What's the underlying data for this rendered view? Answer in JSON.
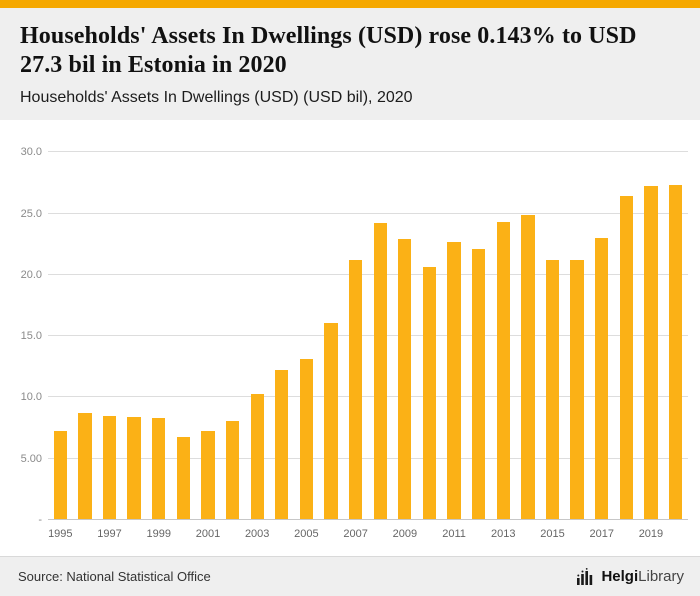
{
  "colors": {
    "strip": "#f5a800",
    "bar": "#fbb116",
    "header_bg": "#efefef",
    "footer_bg": "#efefef",
    "gridline": "#dddddd"
  },
  "header": {
    "title": "Households' Assets In Dwellings (USD) rose 0.143% to USD 27.3 bil in Estonia in 2020",
    "subtitle": "Households' Assets In Dwellings (USD) (USD bil), 2020"
  },
  "chart_data": {
    "type": "bar",
    "title": "Households' Assets In Dwellings (USD) rose 0.143% to USD 27.3 bil in Estonia in 2020",
    "subtitle": "Households' Assets In Dwellings (USD) (USD bil), 2020",
    "xlabel": "",
    "ylabel": "",
    "ylim": [
      0,
      30
    ],
    "ymax_render": 31.2,
    "grid": true,
    "legend": false,
    "bar_color": "#fbb116",
    "categories": [
      "1995",
      "1996",
      "1997",
      "1998",
      "1999",
      "2000",
      "2001",
      "2002",
      "2003",
      "2004",
      "2005",
      "2006",
      "2007",
      "2008",
      "2009",
      "2010",
      "2011",
      "2012",
      "2013",
      "2014",
      "2015",
      "2016",
      "2017",
      "2018",
      "2019",
      "2020"
    ],
    "values": [
      7.3,
      8.7,
      8.5,
      8.4,
      8.3,
      6.8,
      7.3,
      8.1,
      10.3,
      12.2,
      13.1,
      16.1,
      21.2,
      24.2,
      22.9,
      20.6,
      22.7,
      22.1,
      24.3,
      24.9,
      21.2,
      21.2,
      23.0,
      26.4,
      27.26,
      27.3
    ],
    "x_tick_every": 2,
    "yticks": [
      {
        "value": 0,
        "label": "-"
      },
      {
        "value": 5,
        "label": "5.00"
      },
      {
        "value": 10,
        "label": "10.0"
      },
      {
        "value": 15,
        "label": "15.0"
      },
      {
        "value": 20,
        "label": "20.0"
      },
      {
        "value": 25,
        "label": "25.0"
      },
      {
        "value": 30,
        "label": "30.0"
      }
    ]
  },
  "footer": {
    "source": "Source: National Statistical Office",
    "logo": {
      "bold": "Helgi",
      "regular": "Library"
    }
  }
}
